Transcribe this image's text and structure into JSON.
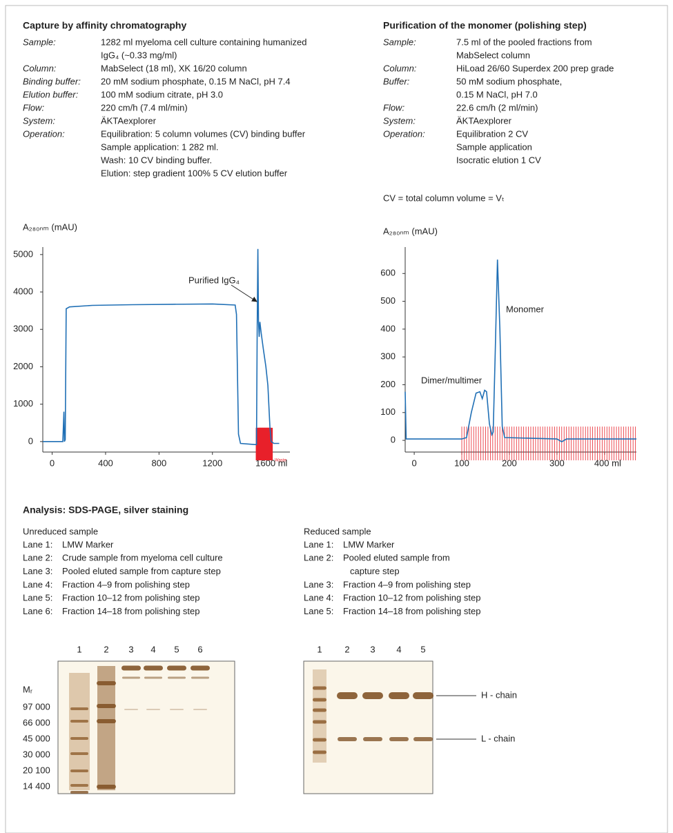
{
  "capture": {
    "title": "Capture by affinity chromatography",
    "params": [
      {
        "label": "Sample:",
        "lines": [
          "1282 ml myeloma cell culture containing humanized",
          "IgG₄ (~0.33 mg/ml)"
        ]
      },
      {
        "label": "Column:",
        "lines": [
          "MabSelect (18 ml), XK 16/20 column"
        ]
      },
      {
        "label": "Binding buffer:",
        "lines": [
          "20 mM sodium phosphate, 0.15 M NaCl, pH 7.4"
        ]
      },
      {
        "label": "Elution buffer:",
        "lines": [
          "100 mM sodium citrate, pH 3.0"
        ]
      },
      {
        "label": "Flow:",
        "lines": [
          "220 cm/h (7.4 ml/min)"
        ]
      },
      {
        "label": "System:",
        "lines": [
          "ÄKTAexplorer"
        ]
      },
      {
        "label": "Operation:",
        "lines": [
          "Equilibration: 5 column volumes (CV) binding buffer",
          "Sample application: 1 282 ml.",
          "Wash: 10 CV binding buffer.",
          "Elution: step gradient 100% 5 CV elution buffer"
        ]
      }
    ]
  },
  "polishing": {
    "title": "Purification of the monomer (polishing step)",
    "params": [
      {
        "label": "Sample:",
        "lines": [
          "7.5 ml of the pooled fractions from",
          "MabSelect column"
        ]
      },
      {
        "label": "Column:",
        "lines": [
          "HiLoad 26/60 Superdex 200 prep grade"
        ]
      },
      {
        "label": "Buffer:",
        "lines": [
          "50 mM sodium phosphate,",
          "0.15 M NaCl, pH 7.0"
        ]
      },
      {
        "label": "Flow:",
        "lines": [
          "22.6 cm/h (2 ml/min)"
        ]
      },
      {
        "label": "System:",
        "lines": [
          "ÄKTAexplorer"
        ]
      },
      {
        "label": "Operation:",
        "lines": [
          "Equilibration 2 CV",
          "Sample application",
          "Isocratic elution 1 CV"
        ]
      }
    ],
    "note": "CV = total column volume = Vₜ"
  },
  "chart_data": [
    {
      "type": "line",
      "y_label": "A₂₈₀ₙₘ (mAU)",
      "color": "#1f6fb5",
      "fraction_color": "#e8202a",
      "xlim": [
        -70,
        1780
      ],
      "ylim": [
        -280,
        5200
      ],
      "xticks": [
        0,
        400,
        800,
        1200,
        {
          "value": 1600,
          "label": "1600 ml"
        }
      ],
      "yticks": [
        0,
        1000,
        2000,
        3000,
        4000,
        5000
      ],
      "x": [
        -70,
        80,
        88,
        92,
        98,
        105,
        130,
        300,
        600,
        900,
        1200,
        1370,
        1380,
        1395,
        1410,
        1520,
        1530,
        1535,
        1540,
        1545,
        1550,
        1555,
        1565,
        1580,
        1600,
        1615,
        1630,
        1640,
        1660,
        1700
      ],
      "values": [
        0,
        0,
        800,
        0,
        50,
        3550,
        3600,
        3640,
        3660,
        3670,
        3680,
        3650,
        3400,
        200,
        -50,
        -80,
        -80,
        3000,
        5150,
        3200,
        2800,
        3200,
        2900,
        2500,
        2000,
        1500,
        400,
        0,
        -50,
        -50
      ],
      "fractions": [
        1540,
        1548,
        1556,
        1564,
        1572,
        1580,
        1588,
        1596,
        1604,
        1612,
        1620,
        1628,
        1636
      ],
      "annotations": [
        "Purified IgG₄",
        "Waste"
      ]
    },
    {
      "type": "line",
      "y_label": "A₂₈₀ₙₘ (mAU)",
      "color": "#1f6fb5",
      "fraction_color": "#e8202a",
      "xlim": [
        -19,
        467
      ],
      "ylim": [
        -42,
        695
      ],
      "xticks": [
        0,
        100,
        200,
        300,
        {
          "value": 400,
          "label": "400 ml"
        }
      ],
      "yticks": [
        0,
        100,
        200,
        300,
        400,
        500,
        600
      ],
      "x": [
        -19,
        -17,
        100,
        110,
        120,
        130,
        138,
        143,
        148,
        152,
        158,
        163,
        166,
        170,
        175,
        180,
        185,
        190,
        300,
        310,
        320,
        467
      ],
      "values": [
        175,
        5,
        5,
        10,
        100,
        170,
        175,
        150,
        180,
        175,
        60,
        20,
        30,
        300,
        650,
        400,
        50,
        10,
        5,
        -5,
        5,
        5
      ],
      "fractions": [
        100,
        105,
        110,
        115,
        120,
        125,
        130,
        135,
        140,
        145,
        150,
        155,
        160,
        165,
        170,
        175,
        180,
        185,
        190,
        195,
        200,
        205,
        210,
        215,
        220,
        225,
        230,
        235,
        240,
        245,
        250,
        255,
        260,
        265,
        270,
        275,
        280,
        285,
        290,
        295,
        300,
        305,
        310,
        315,
        320,
        325,
        330,
        335,
        340,
        345,
        350,
        355,
        360,
        365,
        370,
        375,
        380,
        385,
        390,
        395,
        400,
        405,
        410,
        415,
        420,
        425,
        430,
        435,
        440,
        445,
        450,
        455,
        460,
        465
      ],
      "annotations": [
        "Dimer/multimer",
        "Monomer"
      ]
    }
  ],
  "analysis": {
    "title": "Analysis: SDS-PAGE, silver staining",
    "unreduced": {
      "title": "Unreduced sample",
      "lanes": [
        {
          "label": "Lane 1:",
          "lines": [
            "LMW Marker"
          ]
        },
        {
          "label": "Lane 2:",
          "lines": [
            "Crude sample from myeloma cell culture"
          ]
        },
        {
          "label": "Lane 3:",
          "lines": [
            "Pooled eluted sample from capture step"
          ]
        },
        {
          "label": "Lane 4:",
          "lines": [
            "Fraction 4–9 from polishing step"
          ]
        },
        {
          "label": "Lane 5:",
          "lines": [
            "Fraction 10–12 from polishing step"
          ]
        },
        {
          "label": "Lane 6:",
          "lines": [
            "Fraction 14–18 from polishing step"
          ]
        }
      ]
    },
    "reduced": {
      "title": "Reduced sample",
      "lanes": [
        {
          "label": "Lane 1:",
          "lines": [
            "LMW Marker"
          ]
        },
        {
          "label": "Lane 2:",
          "lines": [
            "Pooled eluted sample from",
            "capture step"
          ]
        },
        {
          "label": "Lane 3:",
          "lines": [
            "Fraction 4–9 from polishing step"
          ]
        },
        {
          "label": "Lane 4:",
          "lines": [
            "Fraction 10–12 from polishing step"
          ]
        },
        {
          "label": "Lane 5:",
          "lines": [
            "Fraction 14–18 from polishing step"
          ]
        }
      ]
    },
    "gel1": {
      "lane_numbers": [
        "1",
        "2",
        "3",
        "4",
        "5",
        "6"
      ],
      "mr_label": "Mᵣ",
      "markers": [
        "97 000",
        "66 000",
        "45 000",
        "30 000",
        "20 100",
        "14 400"
      ]
    },
    "gel2": {
      "lane_numbers": [
        "1",
        "2",
        "3",
        "4",
        "5"
      ],
      "chain_labels": [
        "H - chain",
        "L - chain"
      ]
    }
  }
}
